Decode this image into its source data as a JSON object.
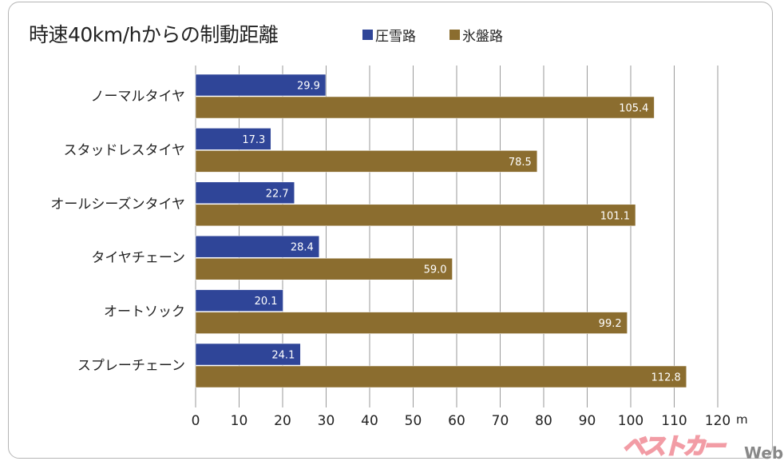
{
  "chart_data": {
    "type": "bar",
    "orientation": "horizontal",
    "title": "時速40km/hからの制動距離",
    "categories": [
      "ノーマルタイヤ",
      "スタッドレスタイヤ",
      "オールシーズンタイヤ",
      "タイヤチェーン",
      "オートソック",
      "スプレーチェーン"
    ],
    "series": [
      {
        "name": "圧雪路",
        "color": "#2f4598",
        "values": [
          29.9,
          17.3,
          22.7,
          28.4,
          20.1,
          24.1
        ],
        "labels": [
          "29.9",
          "17.3",
          "22.7",
          "28.4",
          "20.1",
          "24.1"
        ]
      },
      {
        "name": "氷盤路",
        "color": "#8b6d2f",
        "values": [
          105.4,
          78.5,
          101.1,
          59.0,
          99.2,
          112.8
        ],
        "labels": [
          "105.4",
          "78.5",
          "101.1",
          "59.0",
          "99.2",
          "112.8"
        ]
      }
    ],
    "xlim": [
      0,
      120
    ],
    "xticks": [
      "0",
      "10",
      "20",
      "30",
      "40",
      "50",
      "60",
      "70",
      "80",
      "90",
      "100",
      "110",
      "120"
    ],
    "xunit": "m",
    "grid": true,
    "legend": "top"
  },
  "watermark": {
    "brand": "ベストカー",
    "suffix": "Web"
  }
}
